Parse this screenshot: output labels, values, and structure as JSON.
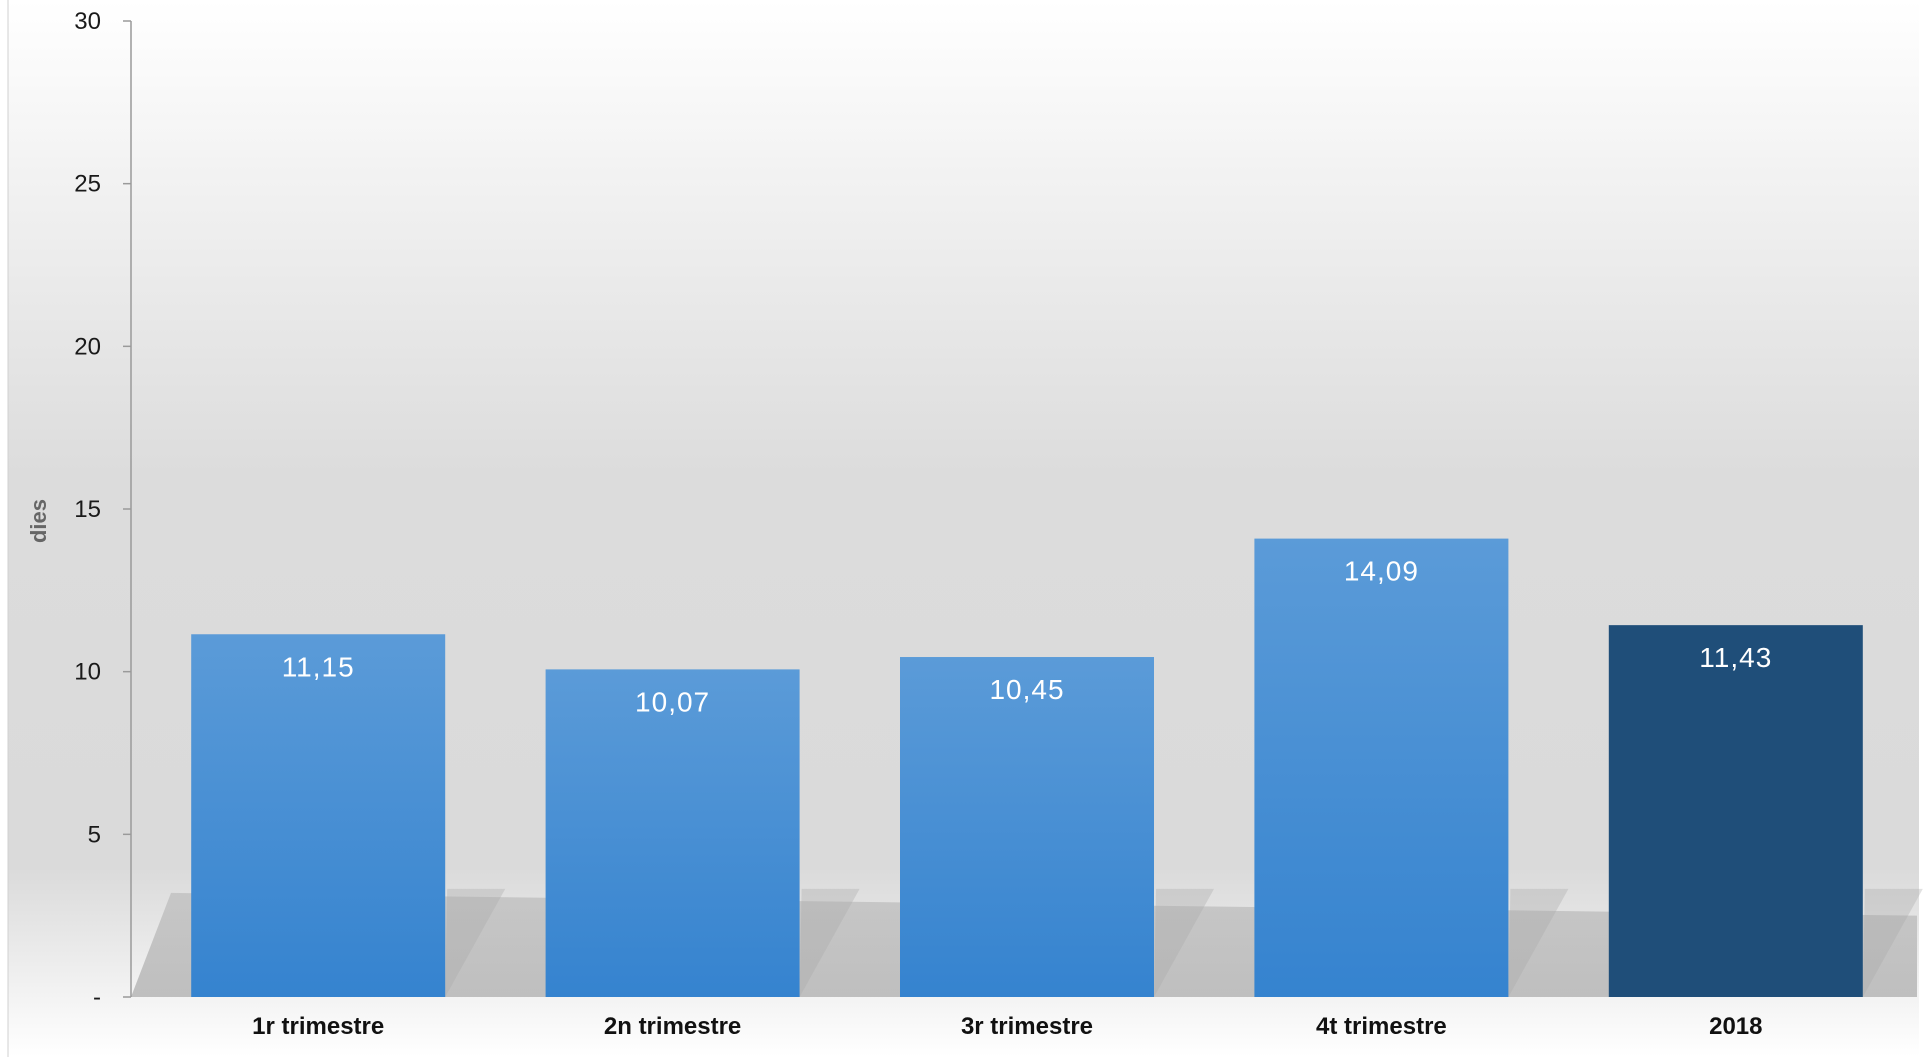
{
  "chart_data": {
    "type": "bar",
    "title": "",
    "xlabel": "",
    "ylabel": "dies",
    "categories": [
      "1r trimestre",
      "2n trimestre",
      "3r trimestre",
      "4t trimestre",
      "2018"
    ],
    "values": [
      11.15,
      10.07,
      10.45,
      14.09,
      11.43
    ],
    "value_labels": [
      "11,15",
      "10,07",
      "10,45",
      "14,09",
      "11,43"
    ],
    "ylim": [
      0,
      30
    ],
    "yticks": [
      0,
      5,
      10,
      15,
      20,
      25,
      30
    ],
    "ytick_labels": [
      "-",
      "5",
      "10",
      "15",
      "20",
      "25",
      "30"
    ],
    "bar_colors": [
      "#4a90d9",
      "#4a90d9",
      "#4a90d9",
      "#4a90d9",
      "#1f4e79"
    ],
    "grid": false,
    "legend": "none"
  }
}
